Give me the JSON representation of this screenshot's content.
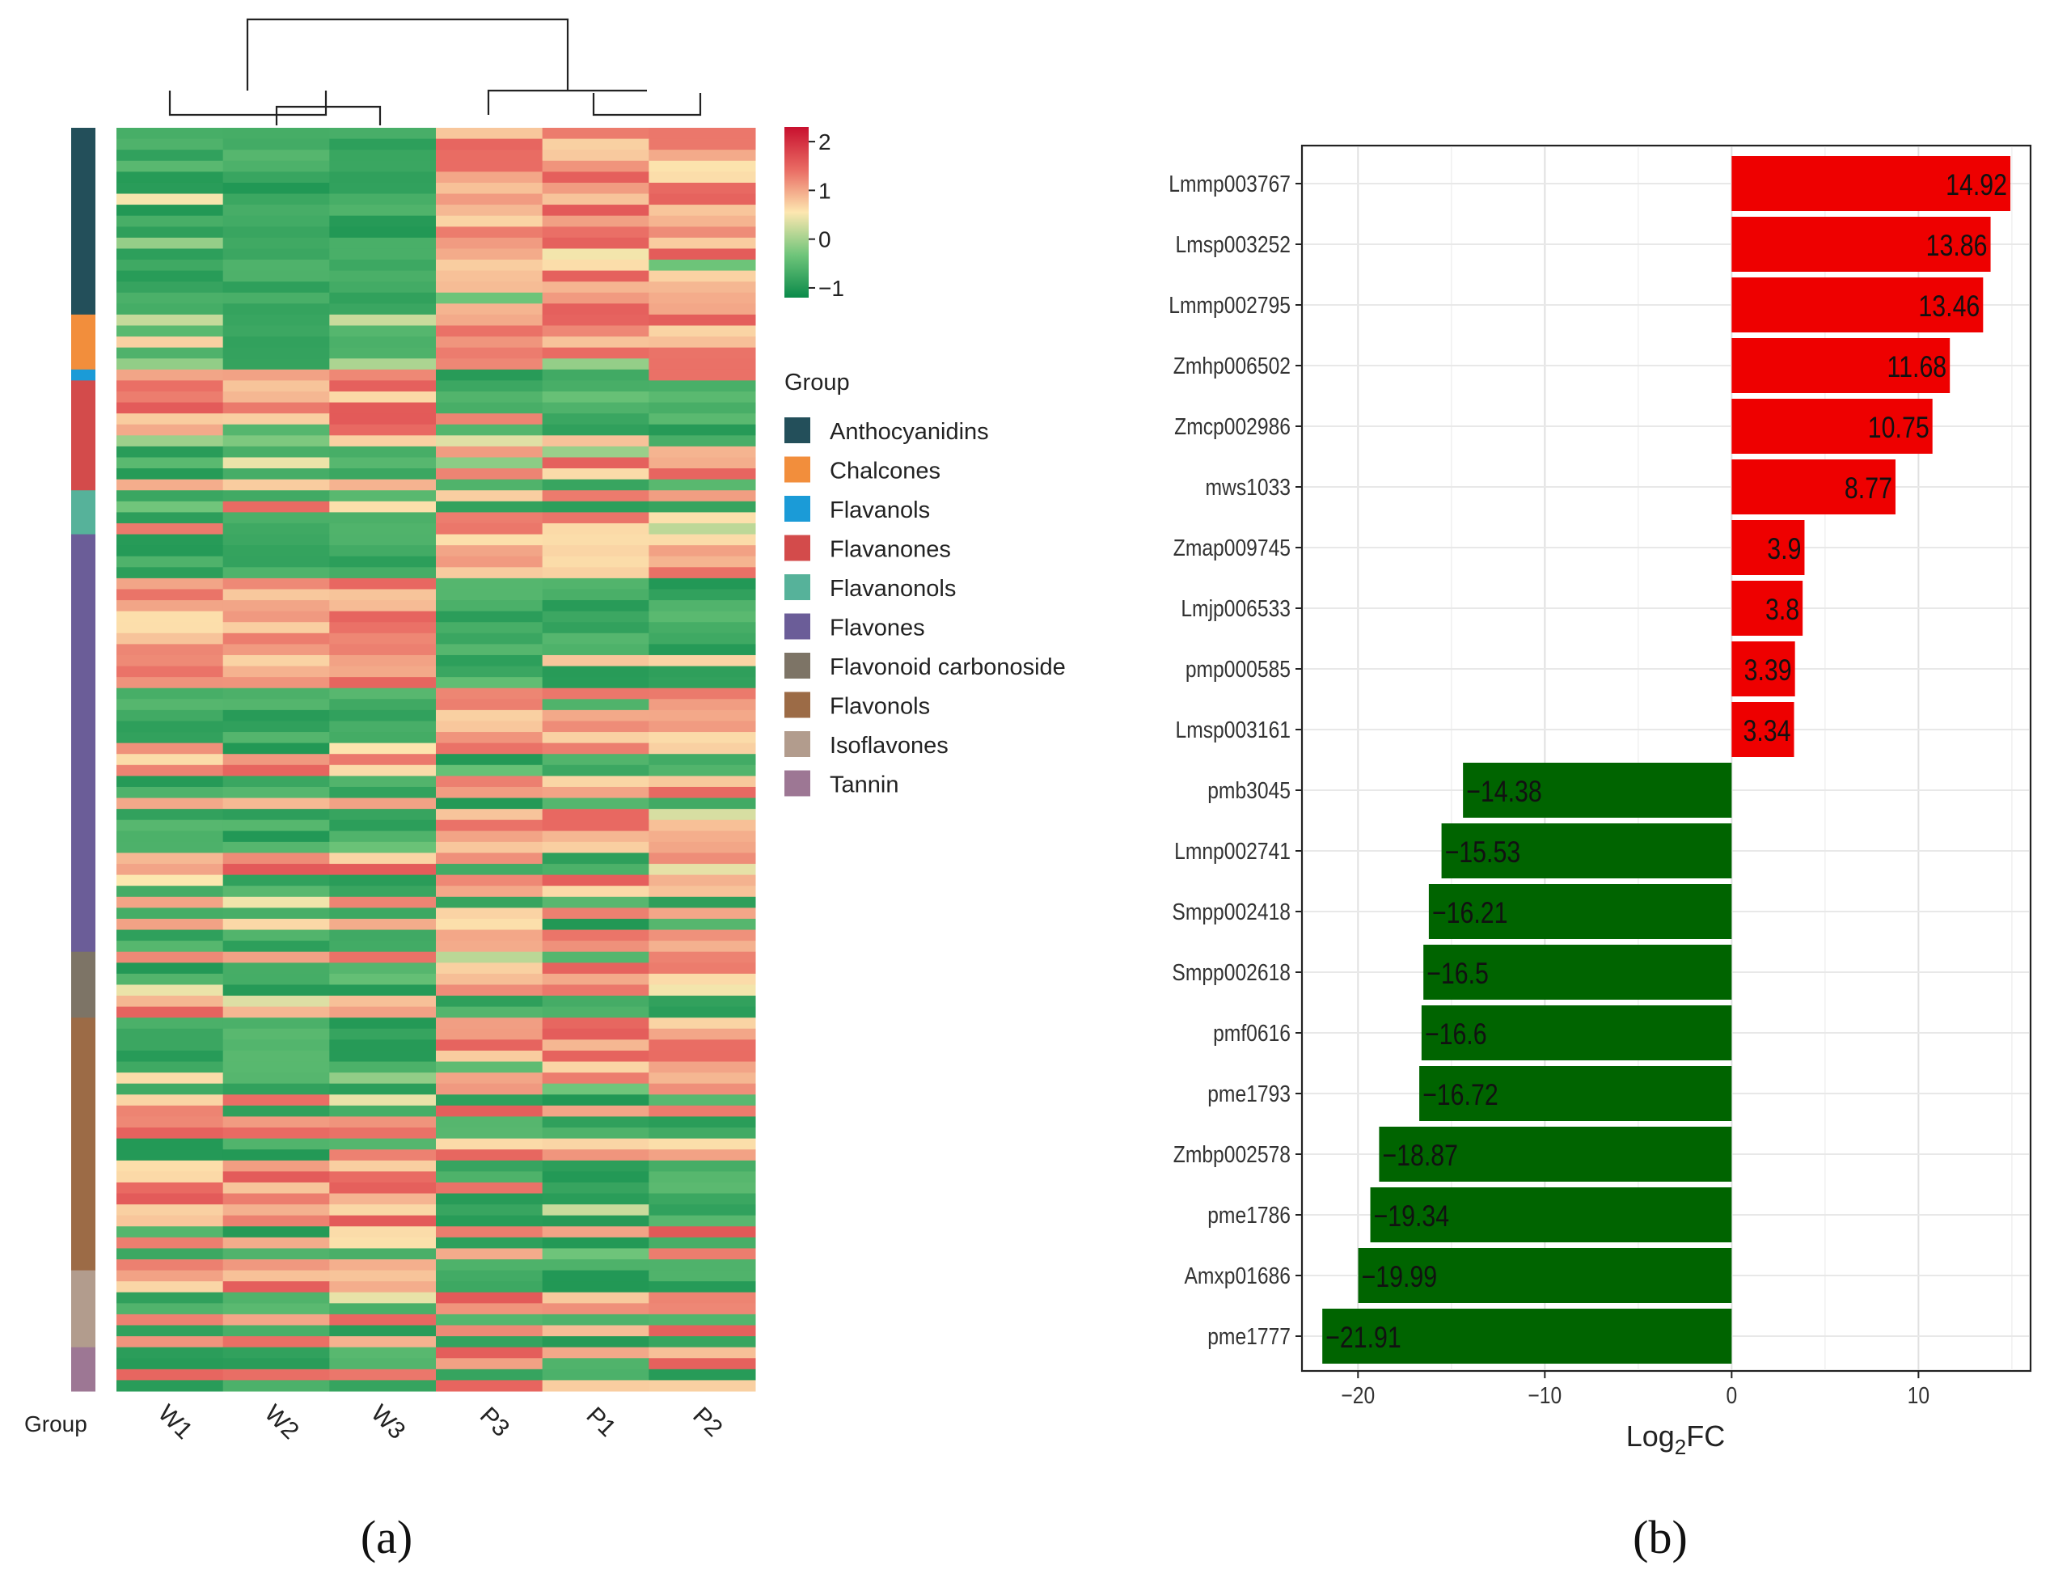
{
  "panels": {
    "a_label": "(a)",
    "b_label": "(b)"
  },
  "chart_data": [
    {
      "type": "heatmap",
      "title": "",
      "columns": [
        "W1",
        "W2",
        "W3",
        "P3",
        "P1",
        "P2"
      ],
      "row_axis_label": "Group",
      "color_scale": {
        "ticks": [
          2,
          1,
          0,
          -1
        ],
        "tick_labels": [
          "2",
          "1",
          "0",
          "−1"
        ],
        "colors": [
          "#c8102e",
          "#e96b63",
          "#fde7b0",
          "#6fc57a",
          "#0a8a4a"
        ]
      },
      "legend": {
        "title": "Group",
        "entries": [
          {
            "label": "Anthocyanidins",
            "color": "#234f5a"
          },
          {
            "label": "Chalcones",
            "color": "#f28e3c"
          },
          {
            "label": "Flavanols",
            "color": "#1b9bd7"
          },
          {
            "label": "Flavanones",
            "color": "#d34b4b"
          },
          {
            "label": "Flavanonols",
            "color": "#56b29a"
          },
          {
            "label": "Flavones",
            "color": "#6b5d98"
          },
          {
            "label": "Flavonoid carbonoside",
            "color": "#7d7466"
          },
          {
            "label": "Flavonols",
            "color": "#9c6b46"
          },
          {
            "label": "Isoflavones",
            "color": "#b29c8d"
          },
          {
            "label": "Tannin",
            "color": "#9d7794"
          }
        ]
      },
      "group_row_counts": [
        17,
        5,
        1,
        10,
        4,
        38,
        6,
        23,
        7,
        4
      ],
      "value_range": [
        -1.2,
        2.3
      ]
    },
    {
      "type": "bar",
      "orientation": "horizontal",
      "title": "",
      "xlabel": "Log2FC",
      "xlabel_main": "Log",
      "xlabel_sub": "2",
      "xlabel_tail": "FC",
      "ylabel": "",
      "xlim": [
        -23,
        16
      ],
      "xticks": [
        -20,
        -10,
        0,
        10
      ],
      "xtick_labels": [
        "−20",
        "−10",
        "0",
        "10"
      ],
      "grid": true,
      "colors": {
        "positive": "#ee0000",
        "negative": "#006400"
      },
      "categories": [
        "Lmmp003767",
        "Lmsp003252",
        "Lmmp002795",
        "Zmhp006502",
        "Zmcp002986",
        "mws1033",
        "Zmap009745",
        "Lmjp006533",
        "pmp000585",
        "Lmsp003161",
        "pmb3045",
        "Lmnp002741",
        "Smpp002418",
        "Smpp002618",
        "pmf0616",
        "pme1793",
        "Zmbp002578",
        "pme1786",
        "Amxp01686",
        "pme1777"
      ],
      "values": [
        14.92,
        13.86,
        13.46,
        11.68,
        10.75,
        8.77,
        3.9,
        3.8,
        3.39,
        3.34,
        -14.38,
        -15.53,
        -16.21,
        -16.5,
        -16.6,
        -16.72,
        -18.87,
        -19.34,
        -19.99,
        -21.91
      ],
      "value_labels": [
        "14.92",
        "13.86",
        "13.46",
        "11.68",
        "10.75",
        "8.77",
        "3.9",
        "3.8",
        "3.39",
        "3.34",
        "−14.38",
        "−15.53",
        "−16.21",
        "−16.5",
        "−16.6",
        "−16.72",
        "−18.87",
        "−19.34",
        "−19.99",
        "−21.91"
      ]
    }
  ]
}
